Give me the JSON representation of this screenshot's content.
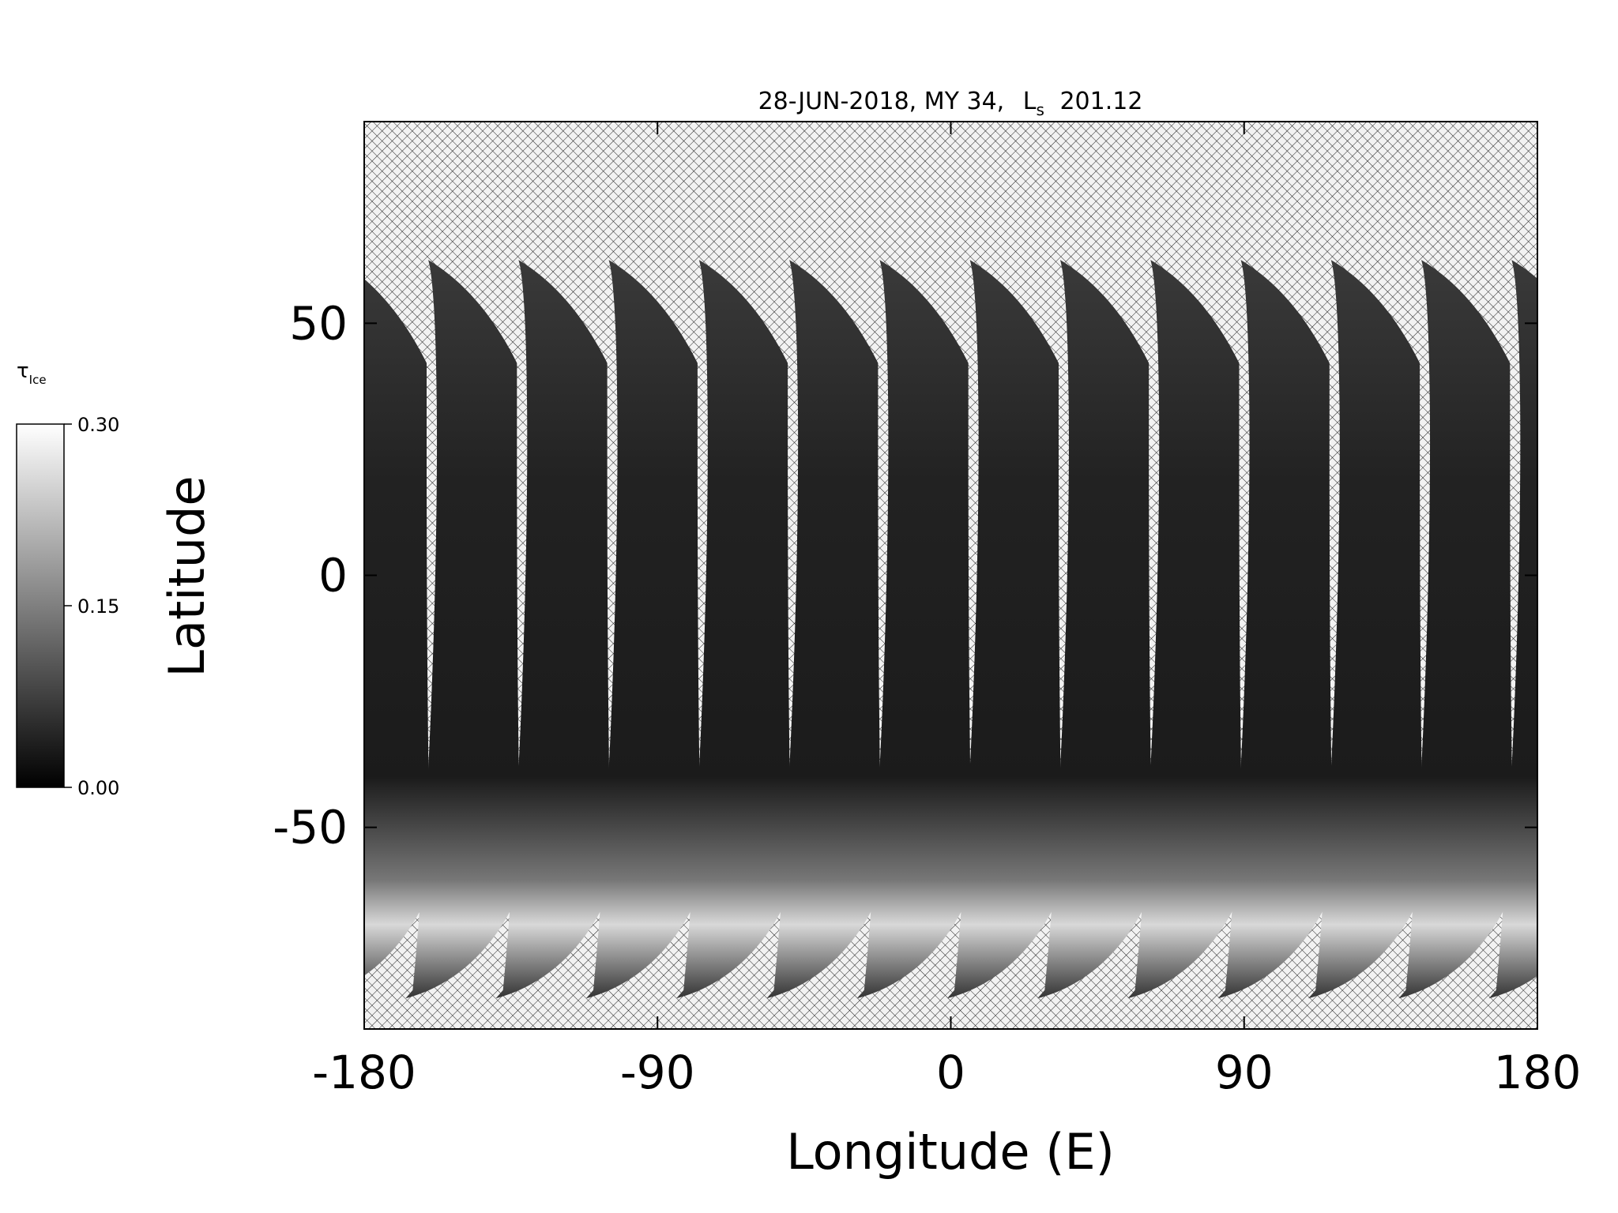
{
  "chart_data": {
    "type": "map",
    "title": "28-JUN-2018, MY 34,",
    "title_symbol": "L",
    "title_symbol_sub": "s",
    "title_value": "201.12",
    "x_label": "Longitude (E)",
    "y_label": "Latitude",
    "xlim": [
      -180,
      180
    ],
    "xticks": [
      -180,
      -90,
      0,
      90,
      180
    ],
    "ylim": [
      -90,
      90
    ],
    "yticks": [
      -50,
      0,
      50
    ],
    "colorbar": {
      "label": "τ",
      "label_sub": "Ice",
      "lim": [
        0,
        0.3
      ],
      "ticks": [
        {
          "value": 0,
          "label": "0.00"
        },
        {
          "value": 0.15,
          "label": "0.15"
        },
        {
          "value": 0.3,
          "label": "0.30"
        }
      ]
    }
  }
}
